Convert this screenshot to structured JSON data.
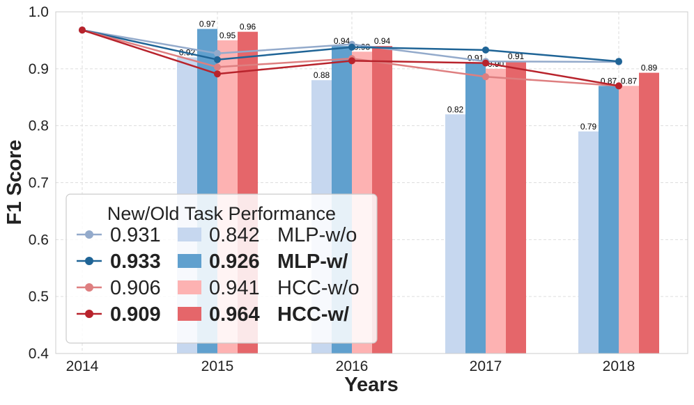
{
  "chart_data": {
    "type": "bar",
    "title": "",
    "xlabel": "Years",
    "ylabel": "F1 Score",
    "ylim": [
      0.4,
      1.0
    ],
    "yticks": [
      "0.4",
      "0.5",
      "0.6",
      "0.7",
      "0.8",
      "0.9",
      "1.0"
    ],
    "categories": [
      "2014",
      "2015",
      "2016",
      "2017",
      "2018"
    ],
    "bar_series": [
      {
        "name": "MLP-w/o",
        "color": "#c6d7ef",
        "values": [
          null,
          0.92,
          0.88,
          0.82,
          0.79
        ],
        "labels": [
          null,
          "0.92",
          "0.88",
          "0.82",
          "0.79"
        ]
      },
      {
        "name": "MLP-w/",
        "color": "#60a0ce",
        "values": [
          null,
          0.97,
          0.94,
          0.91,
          0.87
        ],
        "labels": [
          null,
          "0.97",
          "0.94",
          "0.91",
          "0.87"
        ]
      },
      {
        "name": "HCC-w/o",
        "color": "#fdb2b2",
        "values": [
          null,
          0.95,
          0.93,
          0.9,
          0.87
        ],
        "labels": [
          null,
          "0.95",
          "0.93",
          "0.90",
          "0.87"
        ]
      },
      {
        "name": "HCC-w/",
        "color": "#e5666a",
        "values": [
          null,
          0.965,
          0.94,
          0.913,
          0.893
        ],
        "labels": [
          null,
          "0.96",
          "0.94",
          "0.91",
          "0.89"
        ]
      }
    ],
    "line_series": [
      {
        "name": "MLP-w/o",
        "color": "#93aacb",
        "values": [
          0.968,
          0.927,
          0.943,
          0.913,
          0.912
        ]
      },
      {
        "name": "MLP-w/",
        "color": "#1f6496",
        "values": [
          0.968,
          0.916,
          0.938,
          0.933,
          0.913
        ]
      },
      {
        "name": "HCC-w/o",
        "color": "#de7f80",
        "values": [
          0.968,
          0.903,
          0.918,
          0.886,
          0.87
        ]
      },
      {
        "name": "HCC-w/",
        "color": "#b8232c",
        "values": [
          0.968,
          0.891,
          0.914,
          0.91,
          0.87
        ]
      }
    ],
    "legend": {
      "title": "New/Old Task Performance",
      "placement": "lower-left",
      "rows": [
        {
          "line_value": "0.931",
          "bar_value": "0.842",
          "name": "MLP-w/o",
          "bold": false
        },
        {
          "line_value": "0.933",
          "bar_value": "0.926",
          "name": "MLP-w/",
          "bold": true
        },
        {
          "line_value": "0.906",
          "bar_value": "0.941",
          "name": "HCC-w/o",
          "bold": false
        },
        {
          "line_value": "0.909",
          "bar_value": "0.964",
          "name": "HCC-w/",
          "bold": true
        }
      ]
    },
    "grid": true
  }
}
